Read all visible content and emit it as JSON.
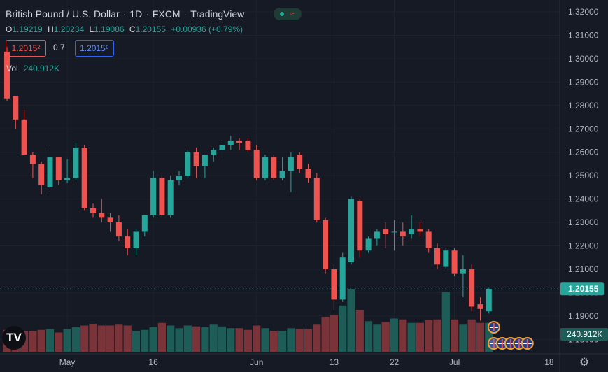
{
  "header": {
    "symbol": "British Pound / U.S. Dollar",
    "interval": "1D",
    "exchange": "FXCM",
    "source": "TradingView",
    "live_icon": "market-open-wave-icon"
  },
  "ohlc": {
    "open_label": "O",
    "open": "1.19219",
    "high_label": "H",
    "high": "1.20234",
    "low_label": "L",
    "low": "1.19086",
    "close_label": "C",
    "close": "1.20155",
    "change": "+0.00936 (+0.79%)"
  },
  "trade": {
    "sell": "1.2015²",
    "spread": "0.7",
    "buy": "1.2015⁹"
  },
  "volume": {
    "label": "Vol",
    "value": "240.912K"
  },
  "logo_text": "TV",
  "settings_icon": "gear-icon",
  "colors": {
    "up": "#26a69a",
    "down": "#ef5350",
    "background": "#161a25",
    "axis_text": "#b2b5be"
  },
  "chart_data": {
    "type": "candlestick",
    "y_axis": {
      "ticks": [
        "1.32000",
        "1.31000",
        "1.30000",
        "1.29000",
        "1.28000",
        "1.27000",
        "1.26000",
        "1.25000",
        "1.24000",
        "1.23000",
        "1.22000",
        "1.21000",
        "1.20000",
        "1.19000",
        "1.18000"
      ],
      "range": [
        1.178,
        1.325
      ]
    },
    "x_axis": {
      "labels": [
        {
          "text": "May",
          "index": 7
        },
        {
          "text": "16",
          "index": 17
        },
        {
          "text": "Jun",
          "index": 29
        },
        {
          "text": "13",
          "index": 38
        },
        {
          "text": "22",
          "index": 45
        },
        {
          "text": "Jul",
          "index": 52
        },
        {
          "text": "18",
          "index": 63
        }
      ]
    },
    "last_price": "1.20155",
    "last_price_value": 1.20155,
    "volume_last": "240.912K",
    "candles": [
      {
        "o": 1.303,
        "h": 1.305,
        "l": 1.282,
        "c": 1.283,
        "v": 0.25
      },
      {
        "o": 1.284,
        "h": 1.284,
        "l": 1.27,
        "c": 1.274,
        "v": 0.22
      },
      {
        "o": 1.274,
        "h": 1.278,
        "l": 1.259,
        "c": 1.259,
        "v": 0.24
      },
      {
        "o": 1.259,
        "h": 1.26,
        "l": 1.249,
        "c": 1.255,
        "v": 0.24
      },
      {
        "o": 1.255,
        "h": 1.256,
        "l": 1.242,
        "c": 1.246,
        "v": 0.25
      },
      {
        "o": 1.245,
        "h": 1.262,
        "l": 1.243,
        "c": 1.258,
        "v": 0.26
      },
      {
        "o": 1.258,
        "h": 1.258,
        "l": 1.246,
        "c": 1.248,
        "v": 0.22
      },
      {
        "o": 1.248,
        "h": 1.257,
        "l": 1.247,
        "c": 1.249,
        "v": 0.26
      },
      {
        "o": 1.249,
        "h": 1.264,
        "l": 1.248,
        "c": 1.262,
        "v": 0.28
      },
      {
        "o": 1.262,
        "h": 1.263,
        "l": 1.235,
        "c": 1.236,
        "v": 0.3
      },
      {
        "o": 1.236,
        "h": 1.238,
        "l": 1.232,
        "c": 1.234,
        "v": 0.32
      },
      {
        "o": 1.234,
        "h": 1.24,
        "l": 1.23,
        "c": 1.232,
        "v": 0.3
      },
      {
        "o": 1.232,
        "h": 1.234,
        "l": 1.226,
        "c": 1.23,
        "v": 0.3
      },
      {
        "o": 1.23,
        "h": 1.233,
        "l": 1.222,
        "c": 1.224,
        "v": 0.31
      },
      {
        "o": 1.224,
        "h": 1.227,
        "l": 1.216,
        "c": 1.219,
        "v": 0.3
      },
      {
        "o": 1.219,
        "h": 1.227,
        "l": 1.216,
        "c": 1.226,
        "v": 0.24
      },
      {
        "o": 1.226,
        "h": 1.233,
        "l": 1.224,
        "c": 1.233,
        "v": 0.25
      },
      {
        "o": 1.233,
        "h": 1.252,
        "l": 1.232,
        "c": 1.249,
        "v": 0.28
      },
      {
        "o": 1.249,
        "h": 1.251,
        "l": 1.232,
        "c": 1.233,
        "v": 0.33
      },
      {
        "o": 1.233,
        "h": 1.25,
        "l": 1.232,
        "c": 1.248,
        "v": 0.3
      },
      {
        "o": 1.248,
        "h": 1.252,
        "l": 1.246,
        "c": 1.25,
        "v": 0.27
      },
      {
        "o": 1.25,
        "h": 1.261,
        "l": 1.249,
        "c": 1.26,
        "v": 0.3
      },
      {
        "o": 1.26,
        "h": 1.262,
        "l": 1.249,
        "c": 1.254,
        "v": 0.29
      },
      {
        "o": 1.254,
        "h": 1.259,
        "l": 1.249,
        "c": 1.259,
        "v": 0.28
      },
      {
        "o": 1.259,
        "h": 1.262,
        "l": 1.256,
        "c": 1.261,
        "v": 0.31
      },
      {
        "o": 1.261,
        "h": 1.265,
        "l": 1.258,
        "c": 1.263,
        "v": 0.29
      },
      {
        "o": 1.263,
        "h": 1.267,
        "l": 1.261,
        "c": 1.265,
        "v": 0.27
      },
      {
        "o": 1.265,
        "h": 1.266,
        "l": 1.261,
        "c": 1.264,
        "v": 0.27
      },
      {
        "o": 1.265,
        "h": 1.266,
        "l": 1.26,
        "c": 1.261,
        "v": 0.25
      },
      {
        "o": 1.261,
        "h": 1.263,
        "l": 1.248,
        "c": 1.249,
        "v": 0.3
      },
      {
        "o": 1.249,
        "h": 1.259,
        "l": 1.248,
        "c": 1.258,
        "v": 0.27
      },
      {
        "o": 1.258,
        "h": 1.259,
        "l": 1.248,
        "c": 1.249,
        "v": 0.24
      },
      {
        "o": 1.249,
        "h": 1.258,
        "l": 1.248,
        "c": 1.252,
        "v": 0.24
      },
      {
        "o": 1.252,
        "h": 1.26,
        "l": 1.243,
        "c": 1.258,
        "v": 0.27
      },
      {
        "o": 1.259,
        "h": 1.26,
        "l": 1.251,
        "c": 1.253,
        "v": 0.26
      },
      {
        "o": 1.253,
        "h": 1.255,
        "l": 1.247,
        "c": 1.249,
        "v": 0.26
      },
      {
        "o": 1.249,
        "h": 1.251,
        "l": 1.23,
        "c": 1.231,
        "v": 0.31
      },
      {
        "o": 1.231,
        "h": 1.232,
        "l": 1.208,
        "c": 1.21,
        "v": 0.4
      },
      {
        "o": 1.21,
        "h": 1.212,
        "l": 1.193,
        "c": 1.197,
        "v": 0.42
      },
      {
        "o": 1.197,
        "h": 1.217,
        "l": 1.196,
        "c": 1.215,
        "v": 0.53
      },
      {
        "o": 1.213,
        "h": 1.241,
        "l": 1.212,
        "c": 1.24,
        "v": 0.72
      },
      {
        "o": 1.239,
        "h": 1.24,
        "l": 1.215,
        "c": 1.218,
        "v": 0.48
      },
      {
        "o": 1.218,
        "h": 1.224,
        "l": 1.217,
        "c": 1.223,
        "v": 0.35
      },
      {
        "o": 1.223,
        "h": 1.227,
        "l": 1.22,
        "c": 1.226,
        "v": 0.31
      },
      {
        "o": 1.227,
        "h": 1.23,
        "l": 1.219,
        "c": 1.225,
        "v": 0.34
      },
      {
        "o": 1.226,
        "h": 1.231,
        "l": 1.218,
        "c": 1.226,
        "v": 0.38
      },
      {
        "o": 1.226,
        "h": 1.23,
        "l": 1.22,
        "c": 1.224,
        "v": 0.37
      },
      {
        "o": 1.225,
        "h": 1.233,
        "l": 1.223,
        "c": 1.227,
        "v": 0.33
      },
      {
        "o": 1.227,
        "h": 1.23,
        "l": 1.224,
        "c": 1.226,
        "v": 0.33
      },
      {
        "o": 1.226,
        "h": 1.227,
        "l": 1.217,
        "c": 1.219,
        "v": 0.36
      },
      {
        "o": 1.219,
        "h": 1.221,
        "l": 1.21,
        "c": 1.212,
        "v": 0.37
      },
      {
        "o": 1.211,
        "h": 1.219,
        "l": 1.21,
        "c": 1.218,
        "v": 0.68
      },
      {
        "o": 1.218,
        "h": 1.219,
        "l": 1.207,
        "c": 1.208,
        "v": 0.37
      },
      {
        "o": 1.208,
        "h": 1.216,
        "l": 1.198,
        "c": 1.21,
        "v": 0.31
      },
      {
        "o": 1.21,
        "h": 1.212,
        "l": 1.192,
        "c": 1.194,
        "v": 0.37
      },
      {
        "o": 1.195,
        "h": 1.198,
        "l": 1.188,
        "c": 1.193,
        "v": 0.33
      },
      {
        "o": 1.192,
        "h": 1.202,
        "l": 1.191,
        "c": 1.2015,
        "v": 0.33
      }
    ],
    "event_markers": [
      {
        "flags": [
          "GB"
        ],
        "index": 56,
        "row": 0
      },
      {
        "flags": [
          "US",
          "GB",
          "GB",
          "GB",
          "GB"
        ],
        "index": 56,
        "row": 1
      }
    ]
  }
}
